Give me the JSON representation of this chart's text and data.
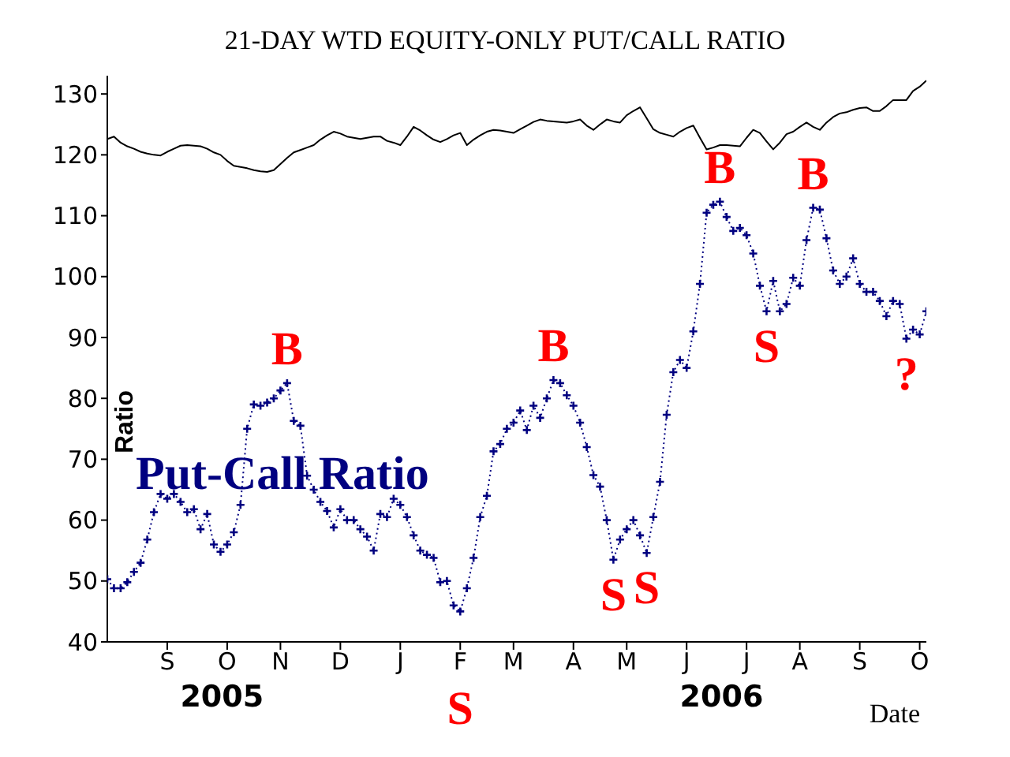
{
  "chart_data": {
    "type": "line",
    "title": "21-DAY WTD EQUITY-ONLY PUT/CALL RATIO",
    "xlabel": "Date",
    "ylabel": "Ratio",
    "categories": [
      null,
      null,
      null,
      null,
      null,
      null,
      null,
      null,
      null,
      "S",
      null,
      null,
      null,
      null,
      null,
      null,
      null,
      null,
      "O",
      null,
      null,
      null,
      null,
      null,
      null,
      null,
      "N",
      null,
      null,
      null,
      null,
      null,
      null,
      null,
      null,
      "D",
      null,
      null,
      null,
      null,
      null,
      null,
      null,
      null,
      "J",
      null,
      null,
      null,
      null,
      null,
      null,
      null,
      null,
      "F",
      null,
      null,
      null,
      null,
      null,
      null,
      null,
      "M",
      null,
      null,
      null,
      null,
      null,
      null,
      null,
      null,
      "A",
      null,
      null,
      null,
      null,
      null,
      null,
      null,
      "M",
      null,
      null,
      null,
      null,
      null,
      null,
      null,
      null,
      "J",
      null,
      null,
      null,
      null,
      null,
      null,
      null,
      null,
      "J",
      null,
      null,
      null,
      null,
      null,
      null,
      null,
      "A",
      null,
      null,
      null,
      null,
      null,
      null,
      null,
      null,
      "S",
      null,
      null,
      null,
      null,
      null,
      null,
      null,
      null,
      "O",
      null
    ],
    "ylim": [
      40,
      133
    ],
    "yticks": [
      40,
      50,
      60,
      70,
      80,
      90,
      100,
      110,
      120,
      130
    ],
    "series": [
      {
        "color": "#000000",
        "marker": "none",
        "line_style": "solid",
        "values": [
          122.6,
          123,
          122,
          121.4,
          121,
          120.5,
          120.2,
          120,
          119.9,
          120.5,
          121,
          121.5,
          121.6,
          121.5,
          121.4,
          121,
          120.4,
          120,
          119,
          118.2,
          118,
          117.8,
          117.5,
          117.3,
          117.2,
          117.5,
          118.5,
          119.5,
          120.4,
          120.8,
          121.2,
          121.6,
          122.5,
          123.2,
          123.8,
          123.5,
          123,
          122.8,
          122.6,
          122.8,
          123,
          123,
          122.3,
          122,
          121.6,
          123,
          124.6,
          124,
          123.2,
          122.5,
          122.1,
          122.6,
          123.2,
          123.6,
          121.6,
          122.5,
          123.2,
          123.8,
          124.1,
          124,
          123.8,
          123.6,
          124.2,
          124.8,
          125.4,
          125.8,
          125.6,
          125.5,
          125.4,
          125.3,
          125.5,
          125.8,
          124.8,
          124.1,
          125,
          125.8,
          125.5,
          125.3,
          126.5,
          127.2,
          127.8,
          126,
          124.2,
          123.6,
          123.3,
          123,
          123.8,
          124.4,
          124.8,
          122.8,
          120.9,
          121.2,
          121.6,
          121.6,
          121.5,
          121.4,
          122.8,
          124.1,
          123.6,
          122.2,
          120.9,
          122,
          123.4,
          123.8,
          124.6,
          125.3,
          124.6,
          124.1,
          125.3,
          126.2,
          126.8,
          127,
          127.4,
          127.7,
          127.8,
          127.2,
          127.2,
          128,
          129,
          129,
          129,
          130.5,
          131.2,
          132.2
        ]
      },
      {
        "name": "Put-Call Ratio",
        "color": "#000080",
        "marker": "cross",
        "line_style": "dotted",
        "values": [
          50.3,
          48.8,
          48.8,
          49.8,
          51.5,
          53,
          56.8,
          61.3,
          64.3,
          63.5,
          64.3,
          63,
          61.3,
          61.8,
          58.5,
          61,
          56,
          54.8,
          56,
          58,
          62.5,
          75,
          79,
          78.8,
          79.3,
          80,
          81.3,
          82.5,
          76.3,
          75.5,
          67.3,
          65,
          63,
          61.5,
          58.8,
          61.8,
          60,
          60,
          58.5,
          57.3,
          55,
          61,
          60.5,
          63.5,
          62.5,
          60.5,
          57.5,
          55,
          54.3,
          53.8,
          49.8,
          50,
          46,
          45,
          48.8,
          53.8,
          60.5,
          64,
          71.3,
          72.5,
          75,
          76,
          78,
          74.8,
          78.8,
          76.8,
          80,
          83,
          82.5,
          80.5,
          78.8,
          76,
          72,
          67.4,
          65.5,
          60,
          53.5,
          56.8,
          58.5,
          60,
          57.5,
          54.6,
          60.5,
          66.3,
          77.3,
          84.3,
          86.3,
          85,
          91,
          98.8,
          110.5,
          111.8,
          112.3,
          109.8,
          107.5,
          108,
          106.8,
          103.8,
          98.5,
          94.3,
          99.3,
          94.3,
          95.5,
          99.8,
          98.5,
          106,
          111.3,
          111,
          106.3,
          101,
          98.8,
          100,
          103,
          98.8,
          97.5,
          97.5,
          96,
          93.5,
          96,
          95.5,
          89.8,
          91.3,
          90.5,
          94.3
        ]
      }
    ],
    "annotations": [
      "2005",
      "2006",
      {
        "text": "B",
        "y": 82.5
      },
      {
        "text": "S",
        "y": 45
      },
      {
        "text": "B",
        "y": 83
      },
      {
        "text": "S",
        "y": 53.5
      },
      {
        "text": "S",
        "y": 54.6
      },
      {
        "text": "B",
        "y": 112.3
      },
      {
        "text": "S",
        "y": 94.3
      },
      {
        "text": "B",
        "y": 111.3
      },
      {
        "text": "?",
        "y": 89.8
      }
    ]
  }
}
